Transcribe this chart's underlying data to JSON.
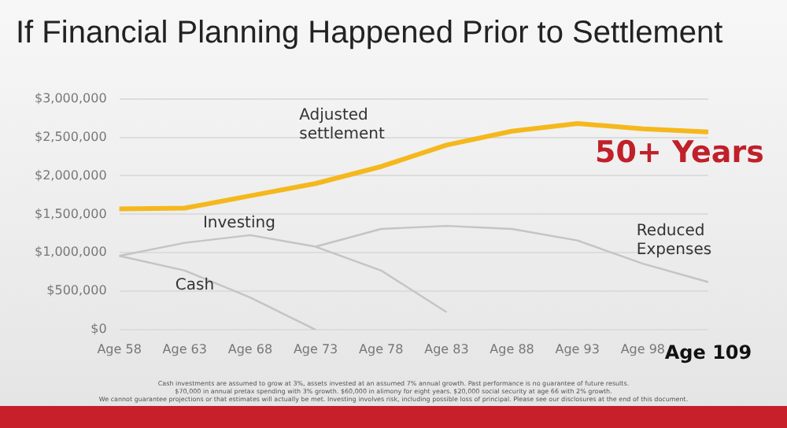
{
  "chart_data": {
    "type": "line",
    "title": "If Financial Planning Happened Prior to Settlement",
    "categories": [
      "Age 58",
      "Age 63",
      "Age 68",
      "Age 73",
      "Age 78",
      "Age 83",
      "Age 88",
      "Age 93",
      "Age 98",
      "Age 109"
    ],
    "series": [
      {
        "name": "Adjusted settlement",
        "color": "#f5b81c",
        "values": [
          1570000,
          1580000,
          1740000,
          1900000,
          2120000,
          2400000,
          2580000,
          2680000,
          2610000,
          2570000
        ]
      },
      {
        "name": "Investing",
        "color": "#c4c4c4",
        "values": [
          960000,
          1130000,
          1230000,
          1080000,
          770000,
          230000,
          null,
          null,
          null,
          null
        ]
      },
      {
        "name": "Cash",
        "color": "#c4c4c4",
        "values": [
          960000,
          770000,
          420000,
          0,
          null,
          null,
          null,
          null,
          null,
          null
        ]
      },
      {
        "name": "Reduced Expenses",
        "color": "#c4c4c4",
        "values": [
          null,
          null,
          null,
          1080000,
          1310000,
          1350000,
          1310000,
          1160000,
          860000,
          620000
        ]
      }
    ],
    "ylim": [
      0,
      3000000
    ],
    "yticks": [
      {
        "value": 0,
        "label": "$0"
      },
      {
        "value": 500000,
        "label": "$500,000"
      },
      {
        "value": 1000000,
        "label": "$1,000,000"
      },
      {
        "value": 1500000,
        "label": "$1,500,000"
      },
      {
        "value": 2000000,
        "label": "$2,000,000"
      },
      {
        "value": 2500000,
        "label": "$2,500,000"
      },
      {
        "value": 3000000,
        "label": "$3,000,000"
      }
    ],
    "grid": "y",
    "legend": false,
    "marker": "none",
    "line_style": "solid",
    "annotations": [
      "50+ Years",
      "Cash investments are assumed to grow at 3%, assets invested at an assumed 7% annual growth. Past performance is no guarantee of future results.",
      "$70,000 in annual pretax spending with 3% growth. $60,000 in alimony for eight years. $20,000 social security at age 66 with 2% growth.",
      "We cannot guarantee projections or that estimates will actually be met. Investing involves risk, including possible loss of principal. Please see our disclosures at the end of this document."
    ]
  }
}
